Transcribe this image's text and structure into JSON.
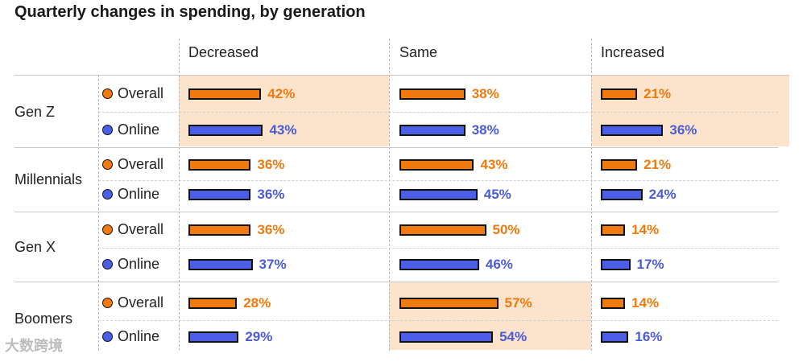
{
  "chart_data": {
    "type": "bar",
    "title": "Quarterly changes in spending, by generation",
    "columns": [
      "Decreased",
      "Same",
      "Increased"
    ],
    "generations": [
      {
        "name": "Gen Z",
        "rows": [
          {
            "type": "Overall",
            "values": [
              42,
              38,
              21
            ],
            "labels": [
              "42%",
              "38%",
              "21%"
            ]
          },
          {
            "type": "Online",
            "values": [
              43,
              38,
              36
            ],
            "labels": [
              "43%",
              "38%",
              "36%"
            ]
          }
        ],
        "highlight": [
          true,
          false,
          true
        ]
      },
      {
        "name": "Millennials",
        "rows": [
          {
            "type": "Overall",
            "values": [
              36,
              43,
              21
            ],
            "labels": [
              "36%",
              "43%",
              "21%"
            ]
          },
          {
            "type": "Online",
            "values": [
              36,
              45,
              24
            ],
            "labels": [
              "36%",
              "45%",
              "24%"
            ]
          }
        ],
        "highlight": [
          false,
          false,
          false
        ]
      },
      {
        "name": "Gen X",
        "rows": [
          {
            "type": "Overall",
            "values": [
              36,
              50,
              14
            ],
            "labels": [
              "36%",
              "50%",
              "14%"
            ]
          },
          {
            "type": "Online",
            "values": [
              37,
              46,
              17
            ],
            "labels": [
              "37%",
              "46%",
              "17%"
            ]
          }
        ],
        "highlight": [
          false,
          false,
          false
        ]
      },
      {
        "name": "Boomers",
        "rows": [
          {
            "type": "Overall",
            "values": [
              28,
              57,
              14
            ],
            "labels": [
              "28%",
              "57%",
              "14%"
            ]
          },
          {
            "type": "Online",
            "values": [
              29,
              54,
              16
            ],
            "labels": [
              "29%",
              "54%",
              "16%"
            ]
          }
        ],
        "highlight": [
          false,
          true,
          false
        ]
      }
    ],
    "colors": {
      "overall": "#ef7b10",
      "online": "#4c5ee6",
      "highlight": "#fbe3cc"
    },
    "units": "%"
  },
  "watermark": "大数跨境"
}
